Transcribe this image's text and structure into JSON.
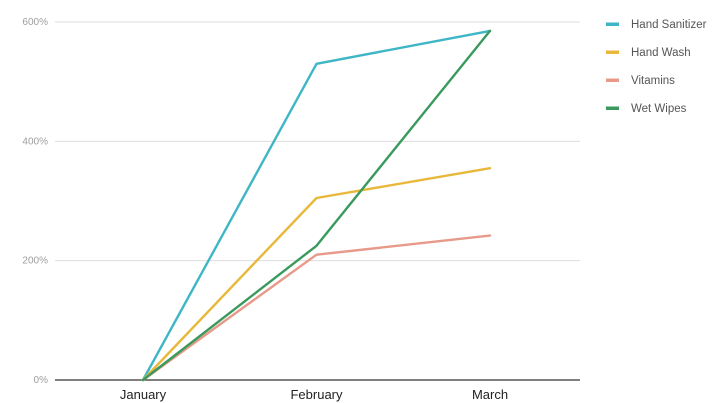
{
  "chart_data": {
    "type": "line",
    "title": "",
    "xlabel": "",
    "ylabel": "",
    "categories": [
      "January",
      "February",
      "March"
    ],
    "y_ticks": [
      "0%",
      "200%",
      "400%",
      "600%"
    ],
    "ylim": [
      0,
      600
    ],
    "grid": true,
    "legend_position": "right",
    "series": [
      {
        "name": "Hand Sanitizer",
        "color": "#3fb6c6",
        "values": [
          0,
          530,
          585
        ]
      },
      {
        "name": "Hand Wash",
        "color": "#e8b83a",
        "values": [
          0,
          305,
          355
        ]
      },
      {
        "name": "Vitamins",
        "color": "#e79a8a",
        "values": [
          0,
          210,
          242
        ]
      },
      {
        "name": "Wet Wipes",
        "color": "#3a9a5e",
        "values": [
          0,
          225,
          585
        ]
      }
    ]
  }
}
